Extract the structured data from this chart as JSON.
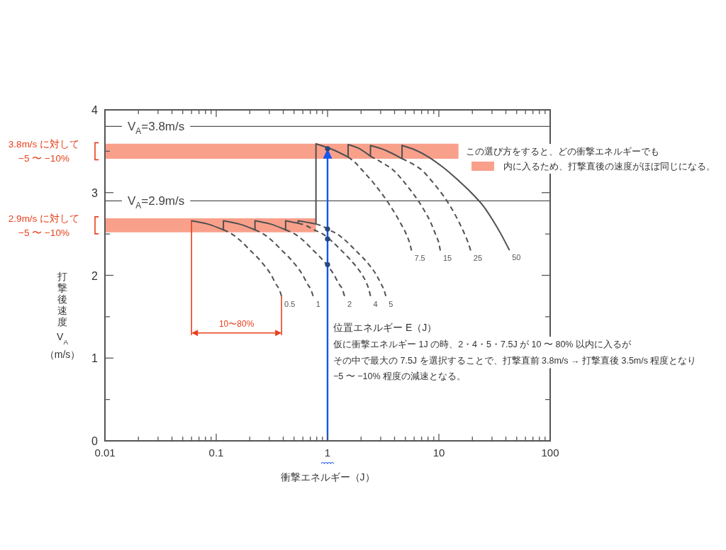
{
  "chart_data": {
    "type": "line",
    "xlabel": "衝撃エネルギー（J）",
    "ylabel": "打撃後速度 V$_{A}$ （m/s）",
    "legend_title": "この選び方をすると、どの衝撃エネルギーでも",
    "legend": "right",
    "log": "x",
    "xlim": [
      0.01,
      100
    ],
    "ylim": [
      0,
      4
    ],
    "xticks": [
      0.01,
      {
        "value": 0.02,
        "label": null
      },
      {
        "value": 0.03,
        "label": null
      },
      {
        "value": 0.04,
        "label": null
      },
      {
        "value": 0.05,
        "label": null
      },
      {
        "value": 0.06,
        "label": null
      },
      {
        "value": 0.07,
        "label": null
      },
      {
        "value": 0.08,
        "label": null
      },
      {
        "value": 0.09,
        "label": null
      },
      0.1,
      {
        "value": 0.2,
        "label": null
      },
      {
        "value": 0.3,
        "label": null
      },
      {
        "value": 0.4,
        "label": null
      },
      {
        "value": 0.5,
        "label": null
      },
      {
        "value": 0.6,
        "label": null
      },
      {
        "value": 0.7,
        "label": null
      },
      {
        "value": 0.8,
        "label": null
      },
      {
        "value": 0.9,
        "label": null
      },
      1,
      {
        "value": 2,
        "label": null
      },
      {
        "value": 3,
        "label": null
      },
      {
        "value": 4,
        "label": null
      },
      {
        "value": 5,
        "label": null
      },
      {
        "value": 6,
        "label": null
      },
      {
        "value": 7,
        "label": null
      },
      {
        "value": 8,
        "label": null
      },
      {
        "value": 9,
        "label": null
      },
      10,
      {
        "value": 20,
        "label": null
      },
      {
        "value": 30,
        "label": null
      },
      {
        "value": 40,
        "label": null
      },
      {
        "value": 50,
        "label": null
      },
      {
        "value": 60,
        "label": null
      },
      {
        "value": 70,
        "label": null
      },
      {
        "value": 80,
        "label": null
      },
      {
        "value": 90,
        "label": null
      },
      100
    ],
    "yticks": [
      0,
      {
        "value": 0.5,
        "label": null
      },
      1,
      {
        "value": 1.5,
        "label": null
      },
      2,
      {
        "value": 2.5,
        "label": null
      },
      3,
      {
        "value": 3.5,
        "label": null
      },
      4
    ],
    "ref_lines": [
      {
        "axis": "y",
        "value": 3.8,
        "label": "V$_{A}$=3.8m/s",
        "color": "#555555"
      },
      {
        "axis": "y",
        "value": 2.9,
        "label": "V$_{A}$=2.9m/s",
        "color": "#555555"
      },
      {
        "axis": "x",
        "value": 1,
        "color": "#1555f0"
      }
    ],
    "annotations": [
      "3.8m/s に対して\n−5 〜 −10%",
      "2.9m/s に対して\n−5 〜 −10%",
      "10〜80%",
      "位置エネルギー E（J）",
      "仮に衝撃エネルギー 1J の時、2・4・5・7.5J が 10 〜 80% 以内に入るが",
      "その中で最大の 7.5J を選択することで、打撃直前 3.8m/s → 打撃直後 3.5m/s 程度となり",
      "−5 〜 −10% 程度の減速となる。"
    ],
    "series": [
      {
        "type": "line",
        "name": "内に入るため、打撃直後の速度がほぼ同じになる。",
        "color": "#f9a08b",
        "x": [
          0.01,
          15
        ],
        "values": [
          null,
          null
        ],
        "lower": [
          3.41,
          3.41
        ],
        "upper": [
          3.59,
          3.59
        ]
      },
      {
        "type": "line",
        "color": "#f9a08b",
        "x": [
          0.01,
          0.787
        ],
        "values": [
          null,
          null
        ],
        "lower": [
          2.52,
          2.52
        ],
        "upper": [
          2.69,
          2.69
        ]
      },
      {
        "type": "line",
        "color": "#505050",
        "line_style": "solid",
        "x": [
          0.06,
          0.084,
          0.116,
          0.116,
          0.161,
          0.223,
          0.223,
          0.308,
          0.42,
          0.42,
          0.545,
          0.545,
          0.663,
          0.787,
          0.787,
          1.11,
          1.53,
          1.53,
          1.94,
          2.43,
          2.43,
          3.34,
          4.67,
          4.67
        ],
        "values": [
          2.66,
          2.62,
          2.55,
          2.66,
          2.62,
          2.55,
          2.66,
          2.62,
          2.55,
          2.66,
          2.63,
          2.66,
          2.64,
          2.62,
          3.59,
          3.52,
          3.43,
          3.58,
          3.53,
          3.44,
          3.57,
          3.51,
          3.41,
          3.57
        ]
      },
      {
        "type": "line",
        "name": "0.5",
        "color": "#505050",
        "line_style": "dashed",
        "x": [
          0.116,
          0.138,
          0.168,
          0.199,
          0.237,
          0.274,
          0.31,
          0.342,
          0.368,
          0.386
        ],
        "values": [
          2.55,
          2.5,
          2.41,
          2.31,
          2.21,
          2.11,
          2.01,
          1.9,
          1.83,
          1.75
        ]
      },
      {
        "type": "line",
        "name": "1",
        "color": "#505050",
        "line_style": "dashed",
        "x": [
          0.223,
          0.265,
          0.323,
          0.383,
          0.455,
          0.527,
          0.595,
          0.657,
          0.707,
          0.742
        ],
        "values": [
          2.55,
          2.5,
          2.41,
          2.31,
          2.21,
          2.11,
          2.01,
          1.9,
          1.83,
          1.75
        ]
      },
      {
        "type": "line",
        "name": "2",
        "color": "#505050",
        "line_style": "dashed",
        "x": [
          0.42,
          0.508,
          0.619,
          0.734,
          0.872,
          1.01,
          1.14,
          1.26,
          1.36,
          1.42
        ],
        "values": [
          2.55,
          2.5,
          2.41,
          2.31,
          2.21,
          2.11,
          2.01,
          1.9,
          1.83,
          1.75
        ]
      },
      {
        "type": "line",
        "name": "4",
        "color": "#505050",
        "line_style": "dashed",
        "x": [
          0.545,
          0.643,
          0.759,
          0.906,
          1.1,
          1.31,
          1.55,
          1.8,
          2.04,
          2.25,
          2.35,
          2.43
        ],
        "values": [
          2.63,
          2.6,
          2.55,
          2.5,
          2.41,
          2.31,
          2.21,
          2.11,
          2.01,
          1.9,
          1.83,
          1.75
        ]
      },
      {
        "type": "line",
        "name": "5",
        "color": "#505050",
        "line_style": "dashed",
        "x": [
          0.787,
          0.916,
          1.03,
          1.22,
          1.48,
          1.76,
          2.09,
          2.42,
          2.73,
          3.02,
          3.2,
          3.34
        ],
        "values": [
          2.62,
          2.59,
          2.55,
          2.5,
          2.41,
          2.31,
          2.21,
          2.11,
          2.01,
          1.9,
          1.83,
          1.75
        ]
      },
      {
        "type": "line",
        "name": "7.5",
        "color": "#505050",
        "line_style": "dashed",
        "x": [
          1.53,
          1.78,
          2.05,
          2.61,
          3.18,
          3.78,
          4.49,
          5.2,
          5.47,
          5.68
        ],
        "values": [
          3.43,
          3.36,
          3.27,
          3.11,
          2.96,
          2.81,
          2.64,
          2.47,
          2.39,
          2.3
        ]
      },
      {
        "type": "line",
        "name": "15",
        "color": "#505050",
        "line_style": "dashed",
        "x": [
          2.43,
          3.1,
          3.91,
          4.99,
          6.08,
          7.21,
          8.44,
          9.5,
          10.0,
          10.3
        ],
        "values": [
          3.44,
          3.36,
          3.27,
          3.11,
          2.96,
          2.81,
          2.64,
          2.47,
          2.39,
          2.3
        ]
      },
      {
        "type": "line",
        "name": "25",
        "color": "#505050",
        "line_style": "dashed",
        "x": [
          4.67,
          5.76,
          7.05,
          9.0,
          11.0,
          13.0,
          15.2,
          17.4,
          18.4,
          19.3
        ],
        "values": [
          3.41,
          3.35,
          3.27,
          3.11,
          2.96,
          2.81,
          2.64,
          2.47,
          2.39,
          2.3
        ]
      },
      {
        "type": "line",
        "name": "50",
        "color": "#505050",
        "line_style": "solid",
        "x": [
          4.67,
          6.02,
          8.08,
          10.8,
          14.6,
          19.5,
          25.0,
          30.4,
          36.1,
          42.8
        ],
        "values": [
          3.57,
          3.52,
          3.43,
          3.31,
          3.16,
          3.0,
          2.84,
          2.67,
          2.5,
          2.31
        ]
      },
      {
        "type": "scatter",
        "color": "#26477f",
        "marker": "circle",
        "x": [
          1,
          1,
          1,
          1
        ],
        "values": [
          2.13,
          2.44,
          2.56,
          3.53
        ]
      }
    ]
  }
}
